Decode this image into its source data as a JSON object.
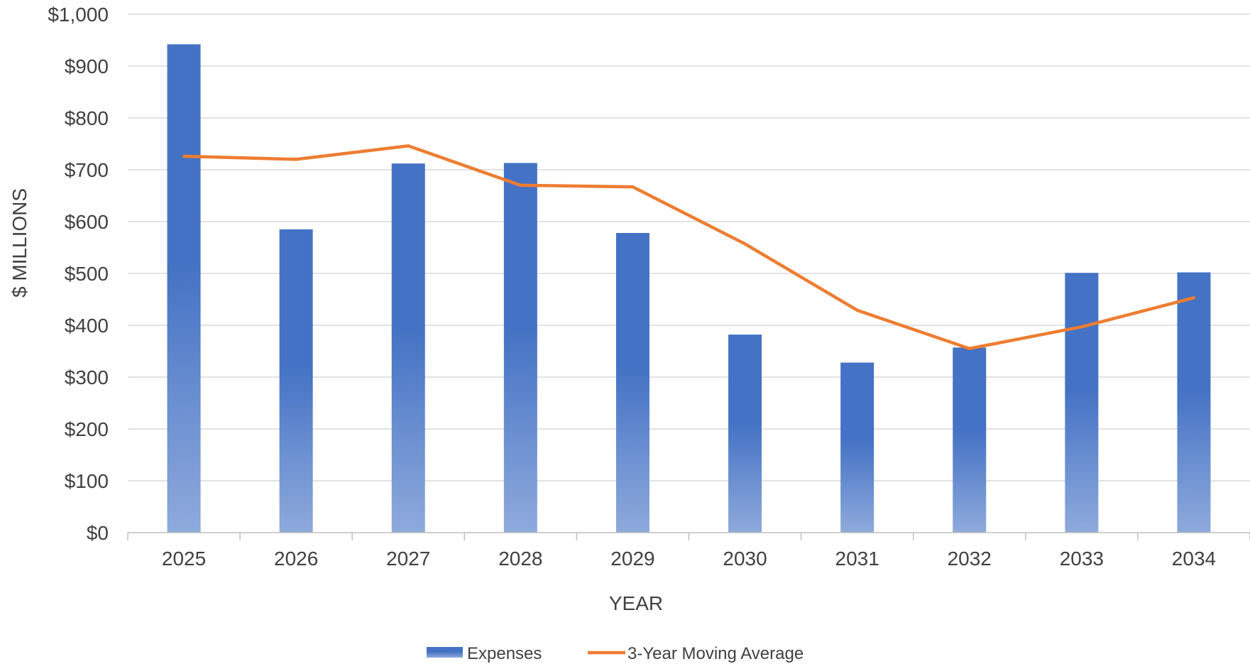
{
  "chart_data": {
    "type": "bar",
    "categories": [
      "2025",
      "2026",
      "2027",
      "2028",
      "2029",
      "2030",
      "2031",
      "2032",
      "2033",
      "2034"
    ],
    "series": [
      {
        "name": "Expenses",
        "type": "bar",
        "color": "#4472c4",
        "values": [
          942,
          585,
          712,
          713,
          578,
          382,
          328,
          357,
          501,
          502
        ]
      },
      {
        "name": "3-Year Moving Average",
        "type": "line",
        "color": "#ed7d31",
        "values": [
          726,
          720,
          746,
          670,
          667,
          557,
          429,
          355,
          397,
          453
        ]
      }
    ],
    "xlabel": "YEAR",
    "ylabel": "$ MILLIONS",
    "ylim": [
      0,
      1000
    ],
    "yticks": [
      0,
      100,
      200,
      300,
      400,
      500,
      600,
      700,
      800,
      900,
      1000
    ],
    "ytick_labels": [
      "$0",
      "$100",
      "$200",
      "$300",
      "$400",
      "$500",
      "$600",
      "$700",
      "$800",
      "$900",
      "$1,000"
    ],
    "grid": true,
    "legend_position": "bottom"
  }
}
